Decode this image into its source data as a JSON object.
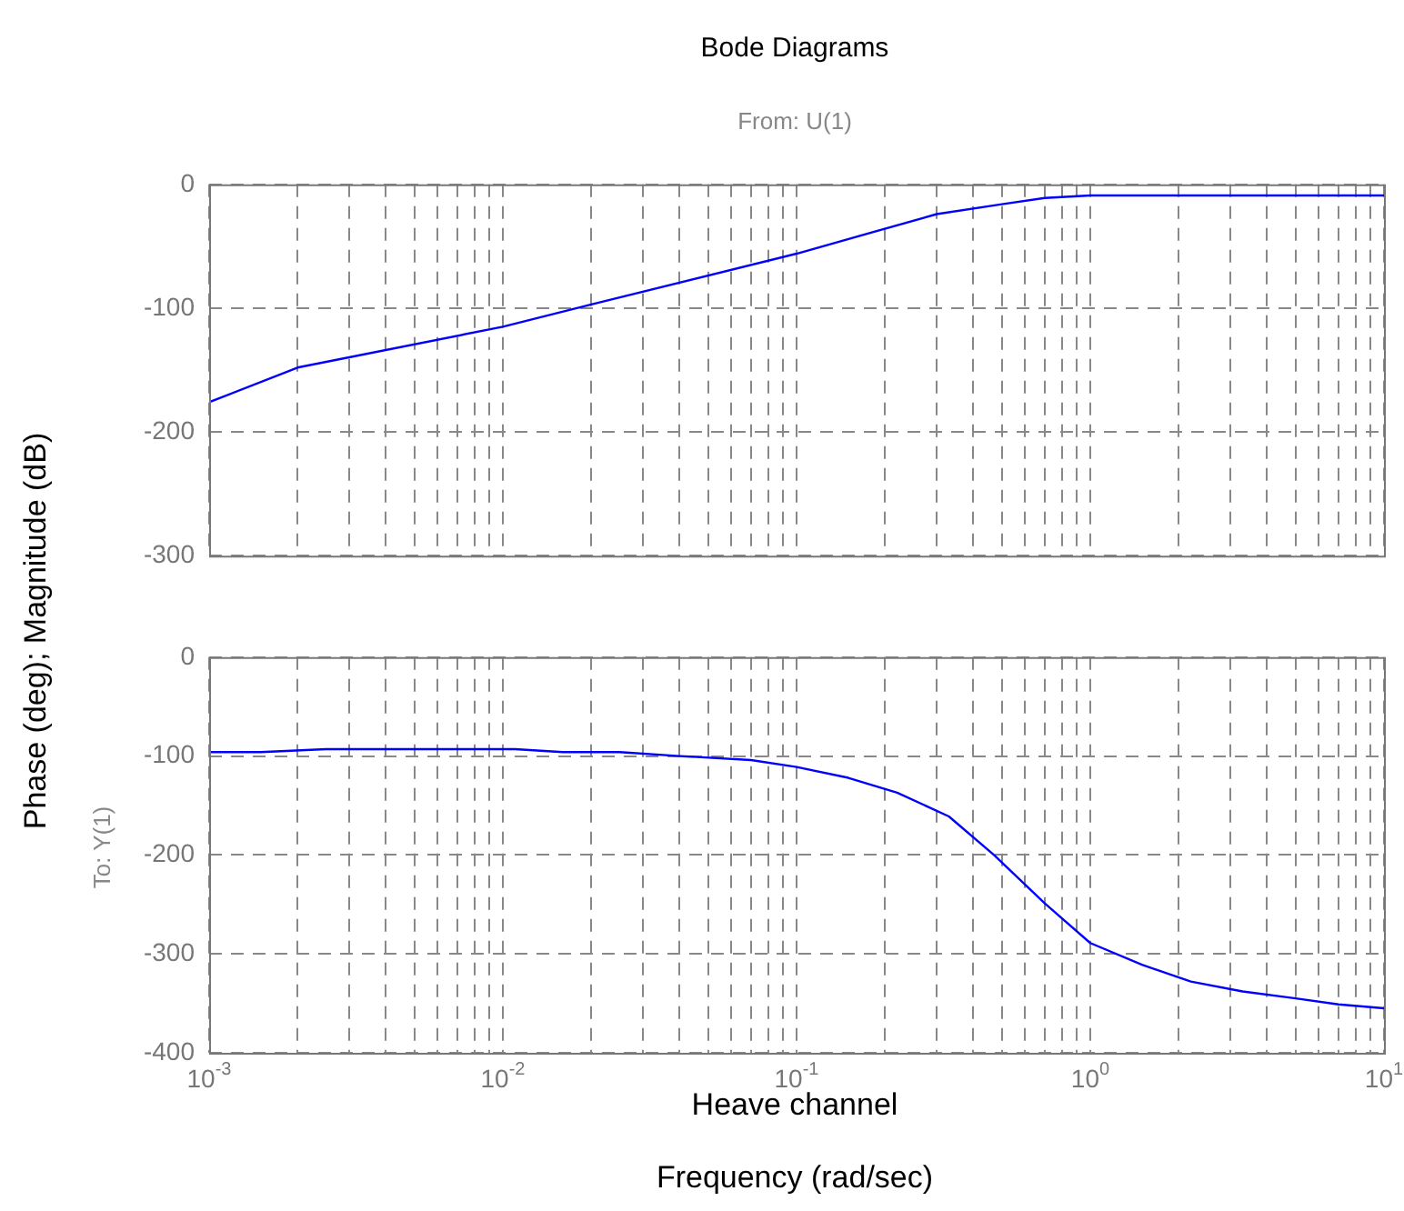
{
  "chart_data": [
    {
      "type": "line",
      "title": "Bode Diagrams",
      "subtitle": "From: U(1)",
      "ylabel": "Phase (deg); Magnitude (dB)",
      "log": "x",
      "grid": true,
      "legend": false,
      "tick_labels": "y",
      "marker": "none",
      "line_style": "solid",
      "xlim": [
        0.001,
        10
      ],
      "ylim": [
        -300,
        0
      ],
      "yticks": [
        0,
        -100,
        -200,
        -300
      ],
      "xticks": [
        0.001,
        0.002,
        0.003,
        0.004,
        0.005,
        0.006,
        0.007,
        0.008,
        0.009,
        0.01,
        0.02,
        0.03,
        0.04,
        0.05,
        0.06,
        0.07,
        0.08,
        0.09,
        0.1,
        0.2,
        0.3,
        0.4,
        0.5,
        0.6,
        0.7,
        0.8,
        0.9,
        1,
        2,
        3,
        4,
        5,
        6,
        7,
        8,
        9,
        10
      ],
      "series": [
        {
          "color": "#0000ff",
          "x": [
            0.001,
            0.002,
            0.01,
            0.02,
            0.1,
            0.3,
            0.5,
            0.7,
            1,
            10
          ],
          "values": [
            -176,
            -148,
            -115,
            -97,
            -56,
            -24,
            -16,
            -11,
            -9,
            -9
          ]
        }
      ]
    },
    {
      "type": "line",
      "xlabel": "Frequency (rad/sec)",
      "annotations": [
        "To: Y(1)",
        "Heave channel"
      ],
      "log": "x",
      "grid": true,
      "legend": false,
      "marker": "none",
      "line_style": "solid",
      "xlim": [
        0.001,
        10
      ],
      "ylim": [
        -400,
        0
      ],
      "yticks": [
        0,
        -100,
        -200,
        -300,
        -400
      ],
      "xticks": [
        {
          "value": 0.001,
          "label": "10$^{-3}$"
        },
        {
          "value": 0.002,
          "label": null
        },
        {
          "value": 0.003,
          "label": null
        },
        {
          "value": 0.004,
          "label": null
        },
        {
          "value": 0.005,
          "label": null
        },
        {
          "value": 0.006,
          "label": null
        },
        {
          "value": 0.007,
          "label": null
        },
        {
          "value": 0.008,
          "label": null
        },
        {
          "value": 0.009,
          "label": null
        },
        {
          "value": 0.01,
          "label": "10$^{-2}$"
        },
        {
          "value": 0.02,
          "label": null
        },
        {
          "value": 0.03,
          "label": null
        },
        {
          "value": 0.04,
          "label": null
        },
        {
          "value": 0.05,
          "label": null
        },
        {
          "value": 0.06,
          "label": null
        },
        {
          "value": 0.07,
          "label": null
        },
        {
          "value": 0.08,
          "label": null
        },
        {
          "value": 0.09,
          "label": null
        },
        {
          "value": 0.1,
          "label": "10$^{-1}$"
        },
        {
          "value": 0.2,
          "label": null
        },
        {
          "value": 0.3,
          "label": null
        },
        {
          "value": 0.4,
          "label": null
        },
        {
          "value": 0.5,
          "label": null
        },
        {
          "value": 0.6,
          "label": null
        },
        {
          "value": 0.7,
          "label": null
        },
        {
          "value": 0.8,
          "label": null
        },
        {
          "value": 0.9,
          "label": null
        },
        {
          "value": 1,
          "label": "10$^{0}$"
        },
        {
          "value": 2,
          "label": null
        },
        {
          "value": 3,
          "label": null
        },
        {
          "value": 4,
          "label": null
        },
        {
          "value": 5,
          "label": null
        },
        {
          "value": 6,
          "label": null
        },
        {
          "value": 7,
          "label": null
        },
        {
          "value": 8,
          "label": null
        },
        {
          "value": 9,
          "label": null
        },
        {
          "value": 10,
          "label": "10$^{1}$"
        }
      ],
      "series": [
        {
          "color": "#0000ff",
          "x": [
            0.001,
            0.0015,
            0.0025,
            0.011,
            0.016,
            0.025,
            0.04,
            0.07,
            0.1,
            0.15,
            0.22,
            0.33,
            0.47,
            0.7,
            1,
            1.5,
            2.2,
            3.3,
            5,
            7,
            10
          ],
          "values": [
            -96,
            -96,
            -93,
            -93,
            -96,
            -96,
            -100,
            -104,
            -111,
            -122,
            -137,
            -161,
            -200,
            -249,
            -289,
            -311,
            -328,
            -338,
            -345,
            -351,
            -355
          ]
        }
      ]
    }
  ]
}
